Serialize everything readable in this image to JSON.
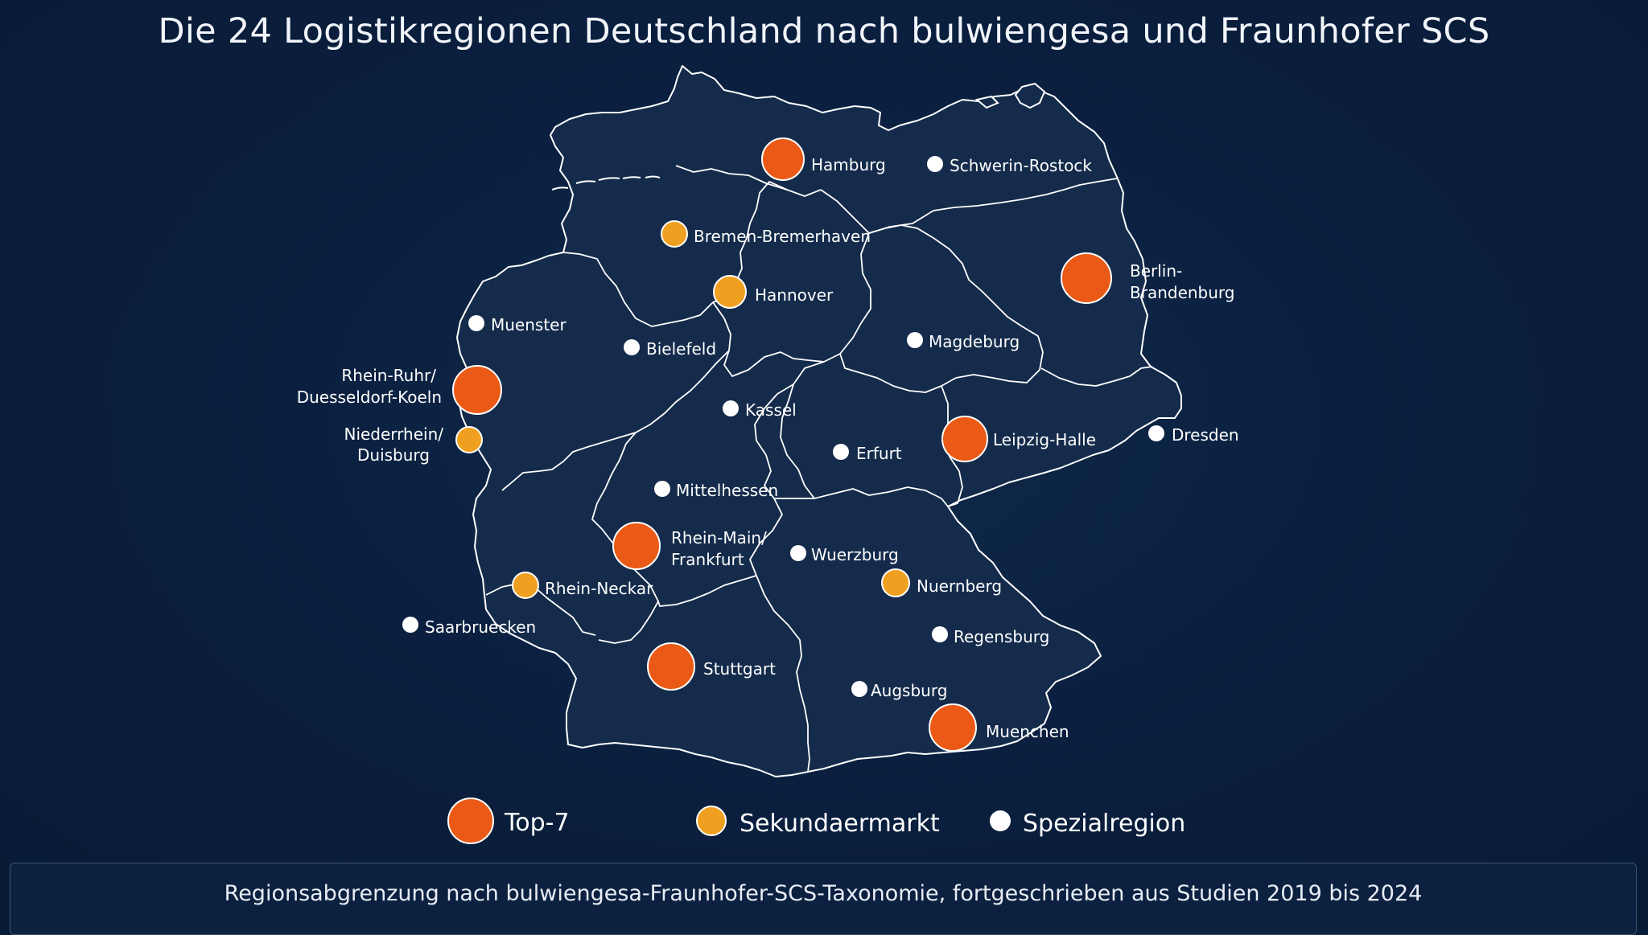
{
  "title": "Die 24 Logistikregionen Deutschland nach bulwiengesa und Fraunhofer SCS",
  "colors": {
    "background": "#0b2040",
    "map_fill": "#142b4b",
    "border": "#ffffff",
    "top7": "#ea5a16",
    "sekundaer": "#f0a020",
    "spezial": "#ffffff"
  },
  "regions": [
    {
      "name": "Hamburg",
      "category": "top7"
    },
    {
      "name": "Schwerin-Rostock",
      "category": "spezial"
    },
    {
      "name": "Bremen-Bremerhaven",
      "category": "sekundaer"
    },
    {
      "name": "Berlin-",
      "name2": "Brandenburg",
      "category": "top7"
    },
    {
      "name": "Hannover",
      "category": "sekundaer"
    },
    {
      "name": "Muenster",
      "category": "spezial"
    },
    {
      "name": "Bielefeld",
      "category": "spezial"
    },
    {
      "name": "Magdeburg",
      "category": "spezial"
    },
    {
      "name": "Rhein-Ruhr/",
      "name2": "Duesseldorf-Koeln",
      "category": "top7"
    },
    {
      "name": "Kassel",
      "category": "spezial"
    },
    {
      "name": "Niederrhein/",
      "name2": "Duisburg",
      "category": "sekundaer"
    },
    {
      "name": "Dresden",
      "category": "spezial"
    },
    {
      "name": "Leipzig-Halle",
      "category": "top7"
    },
    {
      "name": "Erfurt",
      "category": "spezial"
    },
    {
      "name": "Mittelhessen",
      "category": "spezial"
    },
    {
      "name": "Rhein-Main/",
      "name2": "Frankfurt",
      "category": "top7"
    },
    {
      "name": "Wuerzburg",
      "category": "spezial"
    },
    {
      "name": "Rhein-Neckar",
      "category": "sekundaer"
    },
    {
      "name": "Nuernberg",
      "category": "sekundaer"
    },
    {
      "name": "Saarbruecken",
      "category": "spezial"
    },
    {
      "name": "Regensburg",
      "category": "spezial"
    },
    {
      "name": "Stuttgart",
      "category": "top7"
    },
    {
      "name": "Augsburg",
      "category": "spezial"
    },
    {
      "name": "Muenchen",
      "category": "top7"
    }
  ],
  "legend": {
    "top7": "Top-7",
    "sekundaer": "Sekundaermarkt",
    "spezial": "Spezialregion"
  },
  "footer": "Regionsabgrenzung nach bulwiengesa-Fraunhofer-SCS-Taxonomie, fortgeschrieben aus Studien 2019 bis 2024"
}
